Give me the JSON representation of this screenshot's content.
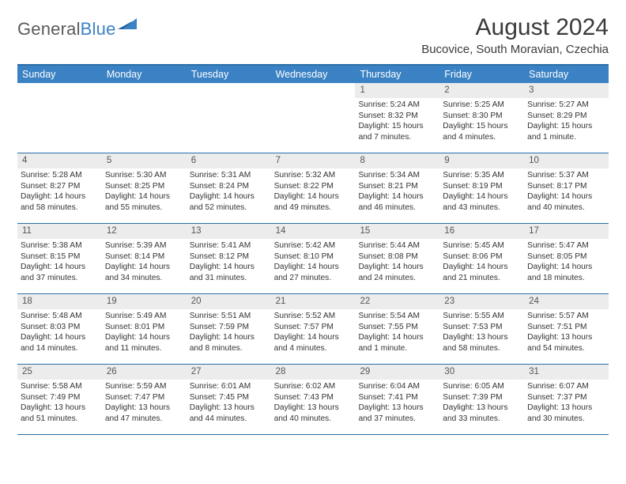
{
  "brand": {
    "word1": "General",
    "word2": "Blue"
  },
  "title": "August 2024",
  "location": "Bucovice, South Moravian, Czechia",
  "colors": {
    "header_bg": "#3b82c4",
    "border": "#2b6fa8",
    "daynum_bg": "#ececec",
    "text": "#333333",
    "brand_gray": "#5a5a5a",
    "brand_blue": "#3b82c4",
    "white": "#ffffff"
  },
  "weekdays": [
    "Sunday",
    "Monday",
    "Tuesday",
    "Wednesday",
    "Thursday",
    "Friday",
    "Saturday"
  ],
  "weeks": [
    [
      {
        "n": "",
        "sr": "",
        "ss": "",
        "dl": ""
      },
      {
        "n": "",
        "sr": "",
        "ss": "",
        "dl": ""
      },
      {
        "n": "",
        "sr": "",
        "ss": "",
        "dl": ""
      },
      {
        "n": "",
        "sr": "",
        "ss": "",
        "dl": ""
      },
      {
        "n": "1",
        "sr": "Sunrise: 5:24 AM",
        "ss": "Sunset: 8:32 PM",
        "dl": "Daylight: 15 hours and 7 minutes."
      },
      {
        "n": "2",
        "sr": "Sunrise: 5:25 AM",
        "ss": "Sunset: 8:30 PM",
        "dl": "Daylight: 15 hours and 4 minutes."
      },
      {
        "n": "3",
        "sr": "Sunrise: 5:27 AM",
        "ss": "Sunset: 8:29 PM",
        "dl": "Daylight: 15 hours and 1 minute."
      }
    ],
    [
      {
        "n": "4",
        "sr": "Sunrise: 5:28 AM",
        "ss": "Sunset: 8:27 PM",
        "dl": "Daylight: 14 hours and 58 minutes."
      },
      {
        "n": "5",
        "sr": "Sunrise: 5:30 AM",
        "ss": "Sunset: 8:25 PM",
        "dl": "Daylight: 14 hours and 55 minutes."
      },
      {
        "n": "6",
        "sr": "Sunrise: 5:31 AM",
        "ss": "Sunset: 8:24 PM",
        "dl": "Daylight: 14 hours and 52 minutes."
      },
      {
        "n": "7",
        "sr": "Sunrise: 5:32 AM",
        "ss": "Sunset: 8:22 PM",
        "dl": "Daylight: 14 hours and 49 minutes."
      },
      {
        "n": "8",
        "sr": "Sunrise: 5:34 AM",
        "ss": "Sunset: 8:21 PM",
        "dl": "Daylight: 14 hours and 46 minutes."
      },
      {
        "n": "9",
        "sr": "Sunrise: 5:35 AM",
        "ss": "Sunset: 8:19 PM",
        "dl": "Daylight: 14 hours and 43 minutes."
      },
      {
        "n": "10",
        "sr": "Sunrise: 5:37 AM",
        "ss": "Sunset: 8:17 PM",
        "dl": "Daylight: 14 hours and 40 minutes."
      }
    ],
    [
      {
        "n": "11",
        "sr": "Sunrise: 5:38 AM",
        "ss": "Sunset: 8:15 PM",
        "dl": "Daylight: 14 hours and 37 minutes."
      },
      {
        "n": "12",
        "sr": "Sunrise: 5:39 AM",
        "ss": "Sunset: 8:14 PM",
        "dl": "Daylight: 14 hours and 34 minutes."
      },
      {
        "n": "13",
        "sr": "Sunrise: 5:41 AM",
        "ss": "Sunset: 8:12 PM",
        "dl": "Daylight: 14 hours and 31 minutes."
      },
      {
        "n": "14",
        "sr": "Sunrise: 5:42 AM",
        "ss": "Sunset: 8:10 PM",
        "dl": "Daylight: 14 hours and 27 minutes."
      },
      {
        "n": "15",
        "sr": "Sunrise: 5:44 AM",
        "ss": "Sunset: 8:08 PM",
        "dl": "Daylight: 14 hours and 24 minutes."
      },
      {
        "n": "16",
        "sr": "Sunrise: 5:45 AM",
        "ss": "Sunset: 8:06 PM",
        "dl": "Daylight: 14 hours and 21 minutes."
      },
      {
        "n": "17",
        "sr": "Sunrise: 5:47 AM",
        "ss": "Sunset: 8:05 PM",
        "dl": "Daylight: 14 hours and 18 minutes."
      }
    ],
    [
      {
        "n": "18",
        "sr": "Sunrise: 5:48 AM",
        "ss": "Sunset: 8:03 PM",
        "dl": "Daylight: 14 hours and 14 minutes."
      },
      {
        "n": "19",
        "sr": "Sunrise: 5:49 AM",
        "ss": "Sunset: 8:01 PM",
        "dl": "Daylight: 14 hours and 11 minutes."
      },
      {
        "n": "20",
        "sr": "Sunrise: 5:51 AM",
        "ss": "Sunset: 7:59 PM",
        "dl": "Daylight: 14 hours and 8 minutes."
      },
      {
        "n": "21",
        "sr": "Sunrise: 5:52 AM",
        "ss": "Sunset: 7:57 PM",
        "dl": "Daylight: 14 hours and 4 minutes."
      },
      {
        "n": "22",
        "sr": "Sunrise: 5:54 AM",
        "ss": "Sunset: 7:55 PM",
        "dl": "Daylight: 14 hours and 1 minute."
      },
      {
        "n": "23",
        "sr": "Sunrise: 5:55 AM",
        "ss": "Sunset: 7:53 PM",
        "dl": "Daylight: 13 hours and 58 minutes."
      },
      {
        "n": "24",
        "sr": "Sunrise: 5:57 AM",
        "ss": "Sunset: 7:51 PM",
        "dl": "Daylight: 13 hours and 54 minutes."
      }
    ],
    [
      {
        "n": "25",
        "sr": "Sunrise: 5:58 AM",
        "ss": "Sunset: 7:49 PM",
        "dl": "Daylight: 13 hours and 51 minutes."
      },
      {
        "n": "26",
        "sr": "Sunrise: 5:59 AM",
        "ss": "Sunset: 7:47 PM",
        "dl": "Daylight: 13 hours and 47 minutes."
      },
      {
        "n": "27",
        "sr": "Sunrise: 6:01 AM",
        "ss": "Sunset: 7:45 PM",
        "dl": "Daylight: 13 hours and 44 minutes."
      },
      {
        "n": "28",
        "sr": "Sunrise: 6:02 AM",
        "ss": "Sunset: 7:43 PM",
        "dl": "Daylight: 13 hours and 40 minutes."
      },
      {
        "n": "29",
        "sr": "Sunrise: 6:04 AM",
        "ss": "Sunset: 7:41 PM",
        "dl": "Daylight: 13 hours and 37 minutes."
      },
      {
        "n": "30",
        "sr": "Sunrise: 6:05 AM",
        "ss": "Sunset: 7:39 PM",
        "dl": "Daylight: 13 hours and 33 minutes."
      },
      {
        "n": "31",
        "sr": "Sunrise: 6:07 AM",
        "ss": "Sunset: 7:37 PM",
        "dl": "Daylight: 13 hours and 30 minutes."
      }
    ]
  ]
}
